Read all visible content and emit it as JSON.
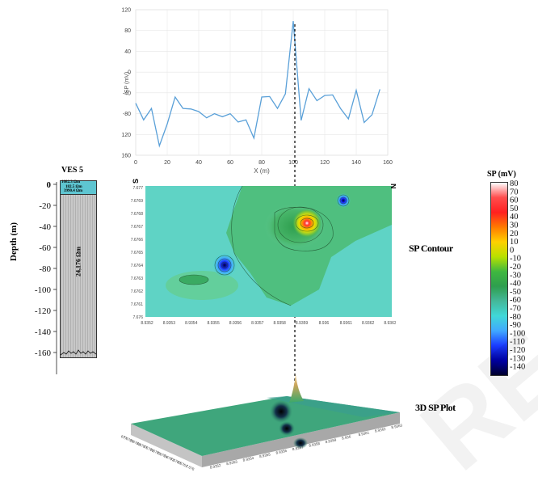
{
  "chart_data": [
    {
      "type": "line",
      "xlabel": "X (m)",
      "ylabel": "SP (mV)",
      "xlim": [
        0,
        160
      ],
      "ylim": [
        -160,
        120
      ],
      "x_ticks": [
        "0",
        "20",
        "40",
        "60",
        "80",
        "100",
        "120",
        "140",
        "160"
      ],
      "y_ticks": [
        "-160",
        "-120",
        "-80",
        "-40",
        "0",
        "40",
        "80",
        "120"
      ],
      "x": [
        0,
        5,
        10,
        15,
        20,
        25,
        30,
        35,
        40,
        45,
        50,
        55,
        60,
        65,
        70,
        75,
        80,
        85,
        90,
        95,
        100,
        105,
        110,
        115,
        120,
        125,
        130,
        135,
        140,
        145,
        150,
        155
      ],
      "values": [
        -60,
        -92,
        -70,
        -142,
        -100,
        -48,
        -70,
        -71,
        -76,
        -88,
        -80,
        -86,
        -80,
        -96,
        -92,
        -127,
        -48,
        -47,
        -70,
        -42,
        98,
        -93,
        -32,
        -55,
        -45,
        -44,
        -70,
        -90,
        -35,
        -97,
        -82,
        -33
      ],
      "line_color": "#5aa0d8"
    },
    {
      "type": "heatmap",
      "title": "SP Contour",
      "x_ticks": [
        "8.9352",
        "8.9353",
        "8.9354",
        "8.9355",
        "8.9356",
        "8.9357",
        "8.9358",
        "8.9359",
        "8.936",
        "8.9361",
        "8.9362",
        "8.9363"
      ],
      "y_ticks": [
        "7.677",
        "7.6769",
        "7.6768",
        "7.6767",
        "7.6766",
        "7.6765",
        "7.6764",
        "7.6763",
        "7.6762",
        "7.6761",
        "7.676"
      ],
      "corner_labels": {
        "left": "S",
        "right": "N"
      },
      "features": [
        {
          "kind": "high",
          "x": 8.9359,
          "y": 7.67675,
          "peak_mv": 80
        },
        {
          "kind": "low",
          "x": 8.93555,
          "y": 7.6764,
          "peak_mv": -140
        },
        {
          "kind": "low",
          "x": 8.93617,
          "y": 7.6769,
          "peak_mv": -120
        }
      ]
    },
    {
      "type": "surface",
      "title": "3D SP Plot",
      "x_ticks": [
        "8.9352",
        "8.9353",
        "8.9354",
        "8.9355",
        "8.9356",
        "8.9357",
        "8.9358",
        "8.9359",
        "8.936",
        "8.9361",
        "8.9362",
        "8.9363"
      ],
      "y_ticks": [
        "7.676",
        "7.6761",
        "7.6762",
        "7.6763",
        "7.6764",
        "7.6765",
        "7.6766",
        "7.6767",
        "7.6768",
        "7.6769",
        "7.677"
      ]
    }
  ],
  "colorbar": {
    "title": "SP (mV)",
    "labels": [
      "80",
      "70",
      "60",
      "50",
      "40",
      "30",
      "20",
      "10",
      "0",
      "-10",
      "-20",
      "-30",
      "-40",
      "-50",
      "-60",
      "-70",
      "-80",
      "-90",
      "-100",
      "-110",
      "-120",
      "-130",
      "-140"
    ],
    "stops": [
      "#ffffff",
      "#ff4d4d",
      "#ff2020",
      "#ff7a00",
      "#ffd000",
      "#b8e000",
      "#3fb83f",
      "#2e9e4e",
      "#44b89a",
      "#40d8d8",
      "#40a8ff",
      "#1a3cff",
      "#0000a8",
      "#000030"
    ]
  },
  "ves": {
    "title": "VES 5",
    "ylabel": "Depth (m)",
    "depth_ticks": [
      "0",
      "-20",
      "-40",
      "-60",
      "-80",
      "-100",
      "-120",
      "-140",
      "-160"
    ],
    "layers": [
      "1082.3 Ωm",
      "182.5 Ωm",
      "3990.4 Ωm"
    ],
    "main_layer": "24,176 Ωm",
    "colors": {
      "top_layer": "#5ec5d1",
      "main_layer": "#c8c8c8"
    }
  },
  "labels": {
    "contour": "SP Contour",
    "surface": "3D SP Plot"
  },
  "watermark": "RE"
}
